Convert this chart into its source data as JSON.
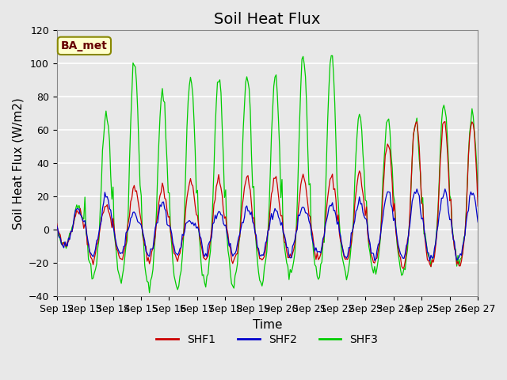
{
  "title": "Soil Heat Flux",
  "xlabel": "Time",
  "ylabel": "Soil Heat Flux (W/m2)",
  "ylim": [
    -40,
    120
  ],
  "yticks": [
    -40,
    -20,
    0,
    20,
    40,
    60,
    80,
    100,
    120
  ],
  "legend_label": "BA_met",
  "legend_entries": [
    "SHF1",
    "SHF2",
    "SHF3"
  ],
  "legend_colors": [
    "#cc0000",
    "#0000cc",
    "#00cc00"
  ],
  "axes_face_color": "#e8e8e8",
  "grid_color": "#ffffff",
  "title_fontsize": 14,
  "axis_fontsize": 11,
  "tick_fontsize": 9,
  "xtick_labels": [
    "Sep 12",
    "Sep 13",
    "Sep 14",
    "Sep 15",
    "Sep 16",
    "Sep 17",
    "Sep 18",
    "Sep 19",
    "Sep 20",
    "Sep 21",
    "Sep 22",
    "Sep 23",
    "Sep 24",
    "Sep 25",
    "Sep 26",
    "Sep 27"
  ],
  "num_days": 15,
  "day_amps_shf3": [
    13,
    70,
    98,
    82,
    92,
    91,
    94,
    92,
    105,
    105,
    68,
    67,
    65,
    75,
    71
  ],
  "day_amps_shf1": [
    12,
    14,
    25,
    25,
    29,
    30,
    32,
    32,
    32,
    32,
    33,
    52,
    65,
    65,
    65
  ],
  "day_amps_shf2": [
    13,
    20,
    10,
    16,
    5,
    11,
    12,
    12,
    13,
    15,
    16,
    23,
    24,
    24,
    22
  ],
  "night_amps_shf3": [
    10,
    28,
    30,
    35,
    35,
    33,
    33,
    33,
    27,
    27,
    27,
    27,
    27,
    18,
    18
  ],
  "night_amps_shf1": [
    10,
    18,
    18,
    18,
    18,
    18,
    18,
    18,
    18,
    18,
    18,
    20,
    22,
    22,
    22
  ],
  "night_amps_shf2": [
    10,
    15,
    15,
    15,
    15,
    15,
    15,
    15,
    15,
    15,
    15,
    18,
    18,
    18,
    18
  ]
}
